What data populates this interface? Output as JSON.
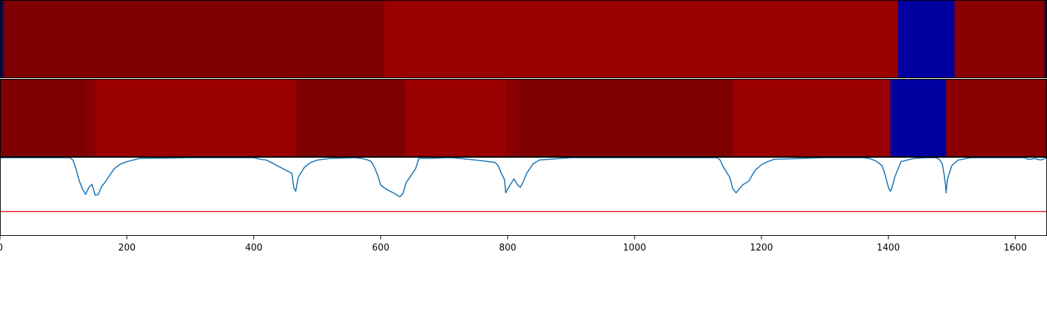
{
  "chart_data": [
    {
      "type": "heatmap",
      "title": "",
      "xlabel": "",
      "ylabel": "",
      "xlim": [
        0,
        1650
      ],
      "segments": [
        {
          "start": 0,
          "end": 6,
          "value": "dark-navy"
        },
        {
          "start": 6,
          "end": 606,
          "value": "dark-red"
        },
        {
          "start": 606,
          "end": 1415,
          "value": "red"
        },
        {
          "start": 1415,
          "end": 1504,
          "value": "blue"
        },
        {
          "start": 1504,
          "end": 1646,
          "value": "dark-red-2"
        },
        {
          "start": 1646,
          "end": 1650,
          "value": "dark-navy"
        }
      ],
      "colors": {
        "dark-navy": "#0a0a5a",
        "dark-red": "#7f0000",
        "red": "#9b0000",
        "blue": "#0000a0",
        "dark-red-2": "#8a0000"
      }
    },
    {
      "type": "heatmap",
      "title": "",
      "xlabel": "",
      "ylabel": "",
      "xlim": [
        0,
        1650
      ],
      "segments": [
        {
          "start": 0,
          "end": 135,
          "value": "dark-red"
        },
        {
          "start": 135,
          "end": 148,
          "value": "mid-red"
        },
        {
          "start": 148,
          "end": 150,
          "value": "dark-red"
        },
        {
          "start": 150,
          "end": 466,
          "value": "red"
        },
        {
          "start": 466,
          "end": 638,
          "value": "dark-red"
        },
        {
          "start": 638,
          "end": 797,
          "value": "red"
        },
        {
          "start": 797,
          "end": 818,
          "value": "mid-red"
        },
        {
          "start": 818,
          "end": 1155,
          "value": "dark-red"
        },
        {
          "start": 1155,
          "end": 1403,
          "value": "red"
        },
        {
          "start": 1403,
          "end": 1491,
          "value": "blue"
        },
        {
          "start": 1491,
          "end": 1650,
          "value": "dark-red-2"
        }
      ],
      "colors": {
        "dark-red": "#7f0000",
        "mid-red": "#8a0000",
        "red": "#9b0000",
        "blue": "#0000a0",
        "dark-red-2": "#8a0000"
      }
    },
    {
      "type": "line",
      "title": "",
      "xlabel": "",
      "ylabel": "",
      "xlim": [
        0,
        1650
      ],
      "ylim": [
        0,
        1
      ],
      "xticks": [
        0,
        200,
        400,
        600,
        800,
        1000,
        1200,
        1400,
        1600
      ],
      "xtick_labels": [
        "0",
        "200",
        "400",
        "600",
        "800",
        "1000",
        "1200",
        "1400",
        "1600"
      ],
      "threshold": {
        "y": 0.31,
        "color": "#e41a1c"
      },
      "series": [
        {
          "color": "#1f77b4",
          "x": [
            0,
            110,
            115,
            120,
            125,
            130,
            135,
            140,
            145,
            150,
            155,
            160,
            165,
            170,
            175,
            180,
            190,
            200,
            210,
            220,
            300,
            380,
            400,
            410,
            420,
            460,
            463,
            466,
            470,
            480,
            490,
            500,
            520,
            560,
            570,
            580,
            585,
            590,
            595,
            600,
            610,
            620,
            630,
            635,
            640,
            645,
            650,
            655,
            660,
            680,
            700,
            712,
            750,
            780,
            785,
            790,
            795,
            797,
            800,
            810,
            815,
            820,
            825,
            830,
            840,
            850,
            900,
            1000,
            1100,
            1130,
            1135,
            1140,
            1150,
            1155,
            1160,
            1170,
            1180,
            1190,
            1200,
            1210,
            1220,
            1300,
            1360,
            1370,
            1380,
            1390,
            1395,
            1400,
            1403,
            1405,
            1410,
            1420,
            1440,
            1460,
            1475,
            1480,
            1485,
            1488,
            1490,
            1491,
            1493,
            1500,
            1510,
            1530,
            1560,
            1600,
            1615,
            1620,
            1625,
            1630,
            1640,
            1650
          ],
          "y": [
            1.0,
            1.0,
            0.97,
            0.85,
            0.7,
            0.6,
            0.53,
            0.62,
            0.66,
            0.52,
            0.53,
            0.63,
            0.68,
            0.74,
            0.8,
            0.86,
            0.92,
            0.95,
            0.97,
            0.99,
            1.0,
            1.0,
            1.0,
            0.98,
            0.97,
            0.8,
            0.62,
            0.57,
            0.75,
            0.88,
            0.94,
            0.97,
            0.99,
            1.0,
            0.99,
            0.97,
            0.95,
            0.88,
            0.78,
            0.65,
            0.59,
            0.55,
            0.5,
            0.54,
            0.68,
            0.74,
            0.8,
            0.86,
            0.99,
            0.99,
            1.0,
            1.0,
            0.97,
            0.94,
            0.9,
            0.8,
            0.72,
            0.55,
            0.6,
            0.73,
            0.66,
            0.62,
            0.7,
            0.8,
            0.92,
            0.97,
            1.0,
            1.0,
            1.0,
            1.0,
            0.97,
            0.88,
            0.75,
            0.6,
            0.55,
            0.65,
            0.7,
            0.84,
            0.91,
            0.95,
            0.98,
            1.0,
            1.0,
            0.99,
            0.96,
            0.9,
            0.78,
            0.62,
            0.57,
            0.6,
            0.75,
            0.95,
            0.99,
            1.0,
            1.0,
            0.98,
            0.92,
            0.78,
            0.65,
            0.55,
            0.72,
            0.9,
            0.97,
            1.0,
            1.0,
            1.0,
            1.0,
            0.98,
            0.98,
            0.99,
            0.97,
            1.0
          ]
        }
      ]
    }
  ]
}
